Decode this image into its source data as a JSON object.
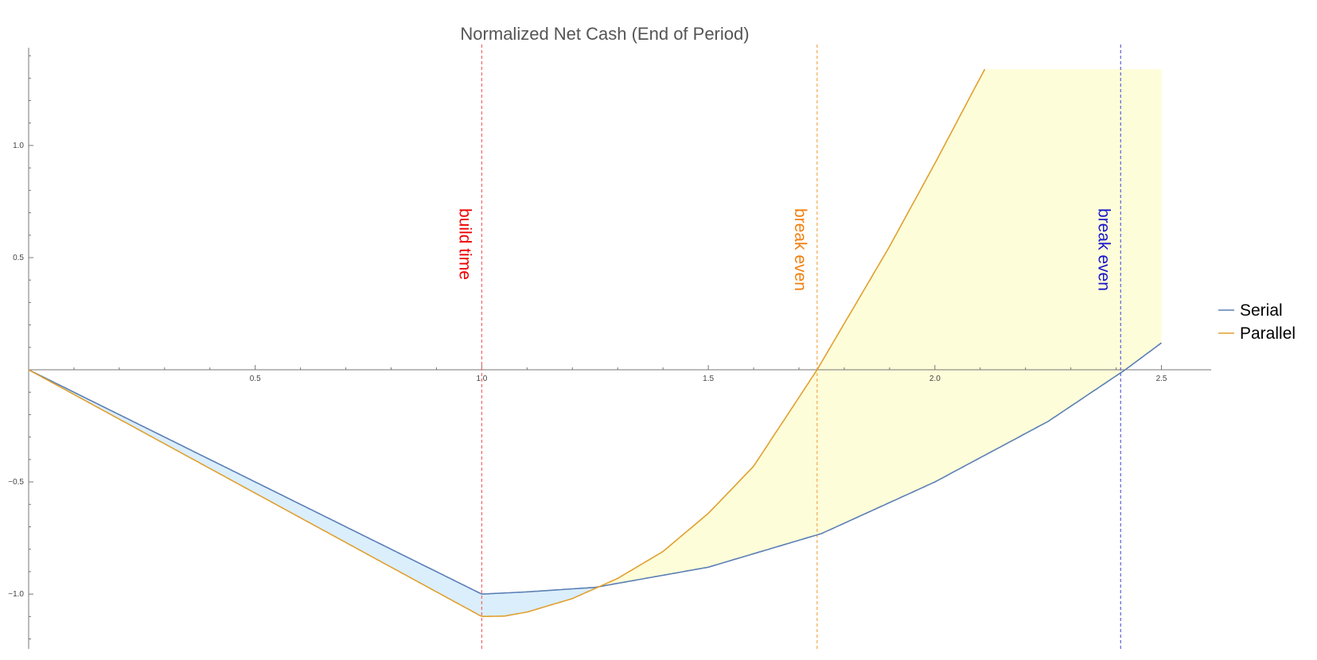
{
  "chart_data": {
    "type": "line",
    "title": "Normalized Net Cash (End of Period)",
    "xlabel": "",
    "ylabel": "",
    "xlim": [
      0,
      2.55
    ],
    "ylim": [
      -1.23,
      1.45
    ],
    "grid": false,
    "legend_position": "right",
    "x_ticks": [
      {
        "value": 0.5,
        "label": "0.5"
      },
      {
        "value": 1.0,
        "label": "1.0"
      },
      {
        "value": 1.5,
        "label": "1.5"
      },
      {
        "value": 2.0,
        "label": "2.0"
      },
      {
        "value": 2.5,
        "label": "2.5"
      }
    ],
    "y_ticks": [
      {
        "value": -1.0,
        "label": "-1.0"
      },
      {
        "value": -0.5,
        "label": "-0.5"
      },
      {
        "value": 0.5,
        "label": "0.5"
      },
      {
        "value": 1.0,
        "label": "1.0"
      }
    ],
    "series": [
      {
        "name": "Serial",
        "color": "#5b7fb5",
        "x": [
          0,
          0.25,
          0.5,
          0.75,
          1.0,
          1.1,
          1.25,
          1.5,
          1.75,
          2.0,
          2.25,
          2.42,
          2.5
        ],
        "y": [
          0,
          -0.25,
          -0.5,
          -0.75,
          -1.0,
          -0.99,
          -0.97,
          -0.88,
          -0.73,
          -0.5,
          -0.23,
          0.0,
          0.12
        ]
      },
      {
        "name": "Parallel",
        "color": "#e0a030",
        "x": [
          0,
          0.25,
          0.5,
          0.75,
          1.0,
          1.05,
          1.1,
          1.2,
          1.3,
          1.4,
          1.5,
          1.6,
          1.74,
          1.9,
          2.0,
          2.11
        ],
        "y": [
          0,
          -0.275,
          -0.55,
          -0.825,
          -1.1,
          -1.098,
          -1.08,
          -1.02,
          -0.93,
          -0.81,
          -0.64,
          -0.43,
          0.0,
          0.55,
          0.92,
          1.34
        ]
      }
    ],
    "fills": [
      {
        "between": [
          "Serial",
          "Parallel"
        ],
        "where": "Serial above Parallel",
        "color": "#dbeefc"
      },
      {
        "between": [
          "Parallel",
          "Serial"
        ],
        "where": "Parallel above Serial",
        "color": "#fdfdd9",
        "clip_top": 1.34
      }
    ],
    "reference_lines": [
      {
        "x": 1.0,
        "label": "build time",
        "color": "#ee0000",
        "line_color": "#f07070"
      },
      {
        "x": 1.74,
        "label": "break even",
        "color": "#f08010",
        "line_color": "#f5b060"
      },
      {
        "x": 2.41,
        "label": "break even",
        "color": "#1818cc",
        "line_color": "#6a6add"
      }
    ],
    "legend": [
      {
        "label": "Serial",
        "color": "#5b7fb5"
      },
      {
        "label": "Parallel",
        "color": "#e0a030"
      }
    ]
  }
}
